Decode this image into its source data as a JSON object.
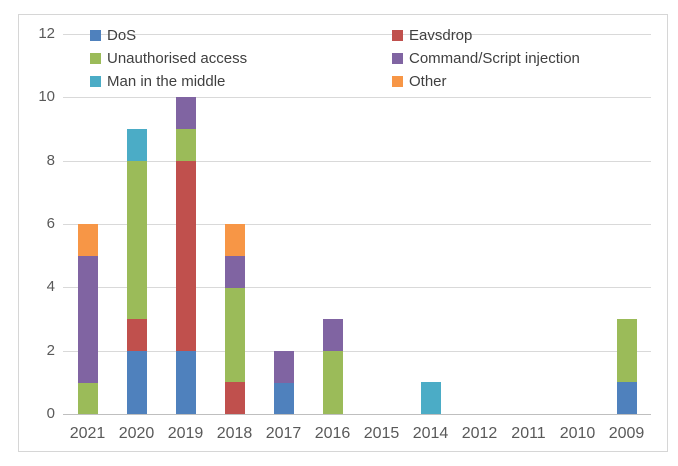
{
  "chart_data": {
    "type": "bar",
    "stacked": true,
    "title": "",
    "xlabel": "",
    "ylabel": "",
    "categories": [
      "2021",
      "2020",
      "2019",
      "2018",
      "2017",
      "2016",
      "2015",
      "2014",
      "2012",
      "2011",
      "2010",
      "2009"
    ],
    "series": [
      {
        "name": "DoS",
        "color": "#4F81BD",
        "values": [
          0,
          2,
          2,
          0,
          1,
          0,
          0,
          0,
          0,
          0,
          0,
          1
        ]
      },
      {
        "name": "Eavsdrop",
        "color": "#C0504D",
        "values": [
          0,
          1,
          6,
          1,
          0,
          0,
          0,
          0,
          0,
          0,
          0,
          0
        ]
      },
      {
        "name": "Unauthorised access",
        "color": "#9BBB59",
        "values": [
          1,
          5,
          1,
          3,
          0,
          2,
          0,
          0,
          0,
          0,
          0,
          2
        ]
      },
      {
        "name": "Command/Script injection",
        "color": "#8064A2",
        "values": [
          4,
          0,
          1,
          1,
          1,
          1,
          0,
          0,
          0,
          0,
          0,
          0
        ]
      },
      {
        "name": "Man in the middle",
        "color": "#4BACC6",
        "values": [
          0,
          1,
          0,
          0,
          0,
          0,
          0,
          1,
          0,
          0,
          0,
          0
        ]
      },
      {
        "name": "Other",
        "color": "#F79646",
        "values": [
          1,
          0,
          0,
          1,
          0,
          0,
          0,
          0,
          0,
          0,
          0,
          0
        ]
      }
    ],
    "totals_per_category": [
      6,
      9,
      10,
      6,
      2,
      3,
      0,
      1,
      0,
      0,
      0,
      3
    ],
    "ylim": [
      0,
      12
    ],
    "yticks": [
      0,
      2,
      4,
      6,
      8,
      10,
      12
    ],
    "grid": "horizontal",
    "legend_position": "top-inside",
    "legend_columns": [
      [
        "DoS",
        "Unauthorised access",
        "Man in the middle"
      ],
      [
        "Eavsdrop",
        "Command/Script injection",
        "Other"
      ]
    ]
  },
  "colors": {
    "background": "#FFFFFF",
    "frame_border": "#D6D6D6",
    "gridline": "#D9D9D9",
    "axis_line": "#BFBFBF",
    "tick_label": "#595959",
    "legend_label": "#404040"
  }
}
